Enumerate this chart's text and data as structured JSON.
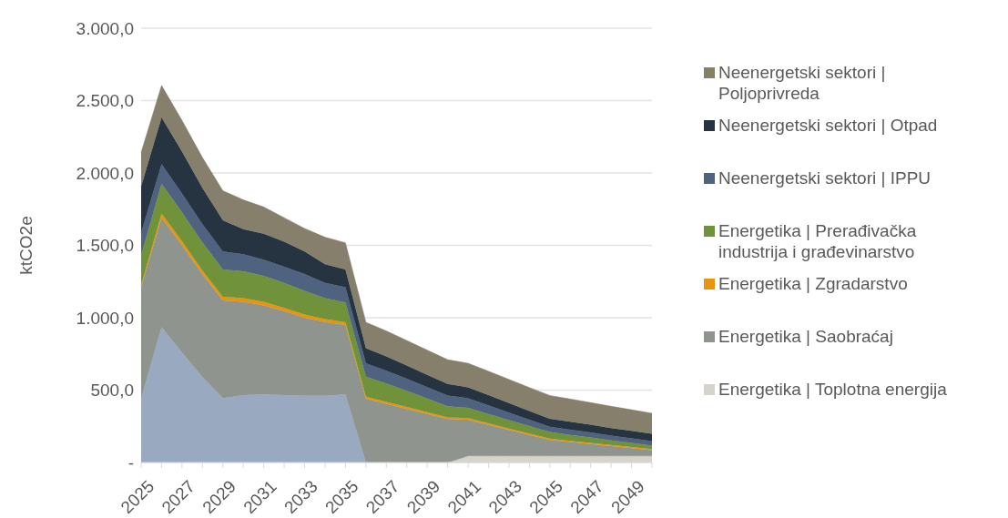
{
  "chart_data": {
    "type": "area",
    "stacked": true,
    "ylabel": "ktCO2e",
    "categories": [
      "2025",
      null,
      "2027",
      null,
      "2029",
      null,
      "2031",
      null,
      "2033",
      null,
      "2035",
      null,
      "2037",
      null,
      "2039",
      null,
      "2041",
      null,
      "2043",
      null,
      "2045",
      null,
      "2047",
      null,
      "2049",
      null
    ],
    "ylim": [
      0,
      3000
    ],
    "yticks": [
      {
        "value": 0,
        "label": "-"
      },
      {
        "value": 500,
        "label": "500,0"
      },
      {
        "value": 1000,
        "label": "1.000,0"
      },
      {
        "value": 1500,
        "label": "1.500,0"
      },
      {
        "value": 2000,
        "label": "2.000,0"
      },
      {
        "value": 2500,
        "label": "2.500,0"
      },
      {
        "value": 3000,
        "label": "3.000,0"
      }
    ],
    "grid": "y",
    "legend": "right",
    "series": [
      {
        "name": "Energetika | Toplotna energija",
        "color": "#d6d3c8",
        "values": [
          0,
          0,
          0,
          0,
          0,
          0,
          0,
          0,
          0,
          0,
          0,
          0,
          0,
          0,
          0,
          0,
          45,
          45,
          45,
          45,
          45,
          45,
          45,
          45,
          45,
          45
        ]
      },
      {
        "color": "#98a9c0",
        "values": [
          440,
          935,
          760,
          590,
          445,
          465,
          470,
          465,
          460,
          460,
          470,
          0,
          0,
          0,
          0,
          0,
          0,
          0,
          0,
          0,
          0,
          0,
          0,
          0,
          0,
          0
        ]
      },
      {
        "name": "Energetika | Saobraćaj",
        "color": "#8f948f",
        "values": [
          770,
          755,
          740,
          710,
          675,
          645,
          615,
          580,
          540,
          510,
          480,
          440,
          405,
          370,
          335,
          300,
          250,
          215,
          180,
          145,
          110,
          96,
          82,
          68,
          54,
          40
        ]
      },
      {
        "name": "Energetika | Zgradarstvo",
        "color": "#e8940c",
        "values": [
          15,
          30,
          28,
          26,
          25,
          25,
          25,
          22,
          22,
          20,
          18,
          15,
          14,
          13,
          12,
          12,
          12,
          11,
          10,
          10,
          10,
          9,
          9,
          8,
          8,
          8
        ]
      },
      {
        "name": "Energetika | Prerađivačka industrija i građevinarstvo",
        "color": "#70923b",
        "values": [
          207,
          206,
          200,
          194,
          188,
          186,
          180,
          174,
          163,
          146,
          137,
          137,
          127,
          112,
          95,
          77,
          70,
          64,
          58,
          51,
          45,
          41,
          37,
          32,
          28,
          24
        ]
      },
      {
        "name": "Neenergetski sektori | IPPU",
        "color": "#4f6380",
        "values": [
          154,
          136,
          130,
          127,
          124,
          117,
          111,
          111,
          117,
          105,
          105,
          93,
          88,
          83,
          78,
          74,
          67,
          60,
          52,
          45,
          37,
          36,
          35,
          33,
          32,
          31
        ]
      },
      {
        "name": "Neenergetski sektori | Otpad",
        "color": "#263340",
        "values": [
          321,
          321,
          290,
          250,
          216,
          173,
          179,
          173,
          155,
          129,
          123,
          105,
          99,
          92,
          86,
          80,
          75,
          70,
          65,
          60,
          55,
          54,
          53,
          52,
          51,
          50
        ]
      },
      {
        "name": "Neenergetski sektori | Poljoprivreda",
        "color": "#857f6c",
        "values": [
          235,
          222,
          215,
          210,
          204,
          204,
          185,
          166,
          160,
          186,
          185,
          179,
          176,
          173,
          170,
          167,
          166,
          165,
          164,
          162,
          161,
          157,
          153,
          150,
          146,
          142
        ]
      }
    ]
  }
}
